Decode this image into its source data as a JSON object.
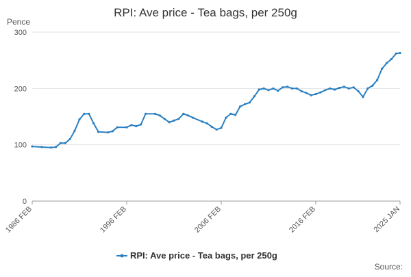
{
  "chart_data": {
    "type": "line",
    "title": "RPI: Ave price - Tea bags, per 250g",
    "y_label": "Pence",
    "source": "Source:",
    "x": [
      "1986 FEB",
      "1987 FEB",
      "1988 FEB",
      "1988 AUG",
      "1989 FEB",
      "1989 AUG",
      "1990 FEB",
      "1990 AUG",
      "1991 FEB",
      "1991 AUG",
      "1992 FEB",
      "1992 AUG",
      "1993 FEB",
      "1994 FEB",
      "1994 AUG",
      "1995 FEB",
      "1996 FEB",
      "1996 AUG",
      "1997 FEB",
      "1997 AUG",
      "1998 FEB",
      "1999 FEB",
      "1999 AUG",
      "2000 FEB",
      "2000 AUG",
      "2001 FEB",
      "2001 AUG",
      "2002 FEB",
      "2002 AUG",
      "2003 FEB",
      "2004 FEB",
      "2004 AUG",
      "2005 FEB",
      "2005 AUG",
      "2006 FEB",
      "2006 AUG",
      "2007 FEB",
      "2007 AUG",
      "2008 FEB",
      "2008 AUG",
      "2009 FEB",
      "2009 AUG",
      "2010 FEB",
      "2010 AUG",
      "2011 FEB",
      "2011 AUG",
      "2012 FEB",
      "2012 AUG",
      "2013 FEB",
      "2013 AUG",
      "2014 FEB",
      "2014 AUG",
      "2015 FEB",
      "2015 AUG",
      "2016 FEB",
      "2016 AUG",
      "2017 FEB",
      "2017 AUG",
      "2018 FEB",
      "2018 AUG",
      "2019 FEB",
      "2019 AUG",
      "2020 FEB",
      "2020 AUG",
      "2021 FEB",
      "2021 AUG",
      "2022 FEB",
      "2022 AUG",
      "2023 FEB",
      "2023 AUG",
      "2024 FEB",
      "2024 AUG",
      "2025 JAN"
    ],
    "series": [
      {
        "name": "RPI: Ave price - Tea bags, per 250g",
        "color": "#2a7fc0",
        "values": [
          97,
          96,
          95,
          96,
          103,
          103,
          110,
          125,
          145,
          155,
          155,
          138,
          123,
          122,
          124,
          131,
          131,
          135,
          133,
          136,
          155,
          155,
          152,
          146,
          140,
          143,
          146,
          155,
          152,
          148,
          141,
          138,
          132,
          127,
          130,
          148,
          155,
          153,
          168,
          172,
          175,
          186,
          198,
          200,
          197,
          200,
          196,
          202,
          203,
          200,
          200,
          195,
          192,
          188,
          190,
          193,
          197,
          200,
          198,
          201,
          203,
          200,
          202,
          195,
          185,
          200,
          205,
          215,
          235,
          245,
          252,
          262,
          263
        ]
      }
    ],
    "xlim": [
      "1986 FEB",
      "2025 JAN"
    ],
    "xticks": [
      "1986 FEB",
      "1996 FEB",
      "2006 FEB",
      "2016 FEB",
      "2025 JAN"
    ],
    "ylim": [
      0,
      300
    ],
    "yticks": [
      0,
      100,
      200,
      300
    ],
    "grid": true
  }
}
